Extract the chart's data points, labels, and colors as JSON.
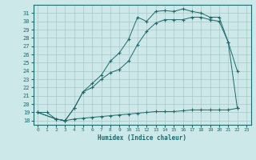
{
  "xlabel": "Humidex (Indice chaleur)",
  "bg_color": "#cde8e8",
  "grid_color": "#a8c8c8",
  "line_color": "#1a6b6b",
  "xlim": [
    -0.5,
    23.5
  ],
  "ylim": [
    17.5,
    32.0
  ],
  "xticks": [
    0,
    1,
    2,
    3,
    4,
    5,
    6,
    7,
    8,
    9,
    10,
    11,
    12,
    13,
    14,
    15,
    16,
    17,
    18,
    19,
    20,
    21,
    22,
    23
  ],
  "yticks": [
    18,
    19,
    20,
    21,
    22,
    23,
    24,
    25,
    26,
    27,
    28,
    29,
    30,
    31
  ],
  "line_top_x": [
    0,
    2,
    3,
    4,
    5,
    6,
    7,
    8,
    9,
    10,
    11,
    12,
    13,
    14,
    15,
    16,
    17,
    18,
    19,
    20,
    21,
    22
  ],
  "line_top_y": [
    19,
    18.2,
    18,
    19.5,
    21.5,
    22.5,
    23.5,
    25.2,
    26.2,
    27.8,
    30.5,
    30.0,
    31.2,
    31.3,
    31.2,
    31.5,
    31.2,
    31.0,
    30.5,
    30.5,
    27.5,
    24.0
  ],
  "line_mid_x": [
    0,
    2,
    3,
    4,
    5,
    6,
    7,
    8,
    9,
    10,
    11,
    12,
    13,
    14,
    15,
    16,
    17,
    18,
    19,
    20,
    21,
    22
  ],
  "line_mid_y": [
    19,
    18.2,
    18,
    19.5,
    21.5,
    22.0,
    23.0,
    23.8,
    24.2,
    25.2,
    27.2,
    28.8,
    29.8,
    30.2,
    30.2,
    30.2,
    30.5,
    30.5,
    30.2,
    30.0,
    27.5,
    19.5
  ],
  "line_bot_x": [
    0,
    1,
    2,
    3,
    4,
    5,
    6,
    7,
    8,
    9,
    10,
    11,
    12,
    13,
    14,
    15,
    16,
    17,
    18,
    19,
    20,
    21,
    22
  ],
  "line_bot_y": [
    19,
    19,
    18.2,
    18.0,
    18.2,
    18.3,
    18.4,
    18.5,
    18.6,
    18.7,
    18.8,
    18.9,
    19.0,
    19.1,
    19.1,
    19.1,
    19.2,
    19.3,
    19.3,
    19.3,
    19.3,
    19.3,
    19.5
  ]
}
